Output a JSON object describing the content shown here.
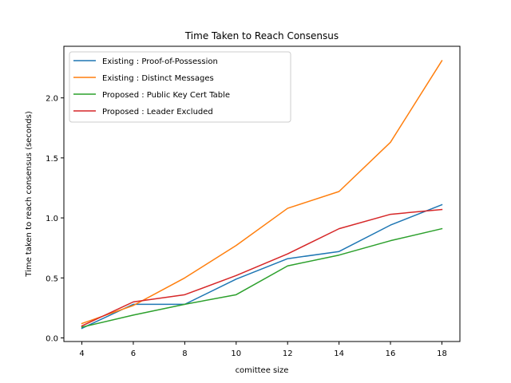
{
  "chart_data": {
    "type": "line",
    "title": "Time Taken to Reach Consensus",
    "xlabel": "comittee size",
    "ylabel": "Time taken to reach consensus (seconds)",
    "x": [
      4,
      6,
      8,
      10,
      12,
      14,
      16,
      18
    ],
    "xticks": [
      "4",
      "6",
      "8",
      "10",
      "12",
      "14",
      "16",
      "18"
    ],
    "yticks": [
      "0.0",
      "0.5",
      "1.0",
      "1.5",
      "2.0"
    ],
    "xlim": [
      3.3,
      18.7
    ],
    "ylim": [
      -0.03,
      2.43
    ],
    "grid": false,
    "legend_position": "top-left",
    "series": [
      {
        "name": "Existing : Proof-of-Possession",
        "color": "#1f77b4",
        "values": [
          0.08,
          0.28,
          0.28,
          0.49,
          0.66,
          0.72,
          0.94,
          1.11
        ]
      },
      {
        "name": "Existing : Distinct Messages",
        "color": "#ff7f0e",
        "values": [
          0.12,
          0.27,
          0.5,
          0.77,
          1.08,
          1.22,
          1.63,
          2.31
        ]
      },
      {
        "name": "Proposed : Public Key Cert Table",
        "color": "#2ca02c",
        "values": [
          0.09,
          0.19,
          0.28,
          0.36,
          0.6,
          0.69,
          0.81,
          0.91
        ]
      },
      {
        "name": "Proposed : Leader Excluded",
        "color": "#d62728",
        "values": [
          0.1,
          0.3,
          0.36,
          0.52,
          0.7,
          0.91,
          1.03,
          1.07
        ]
      }
    ]
  }
}
